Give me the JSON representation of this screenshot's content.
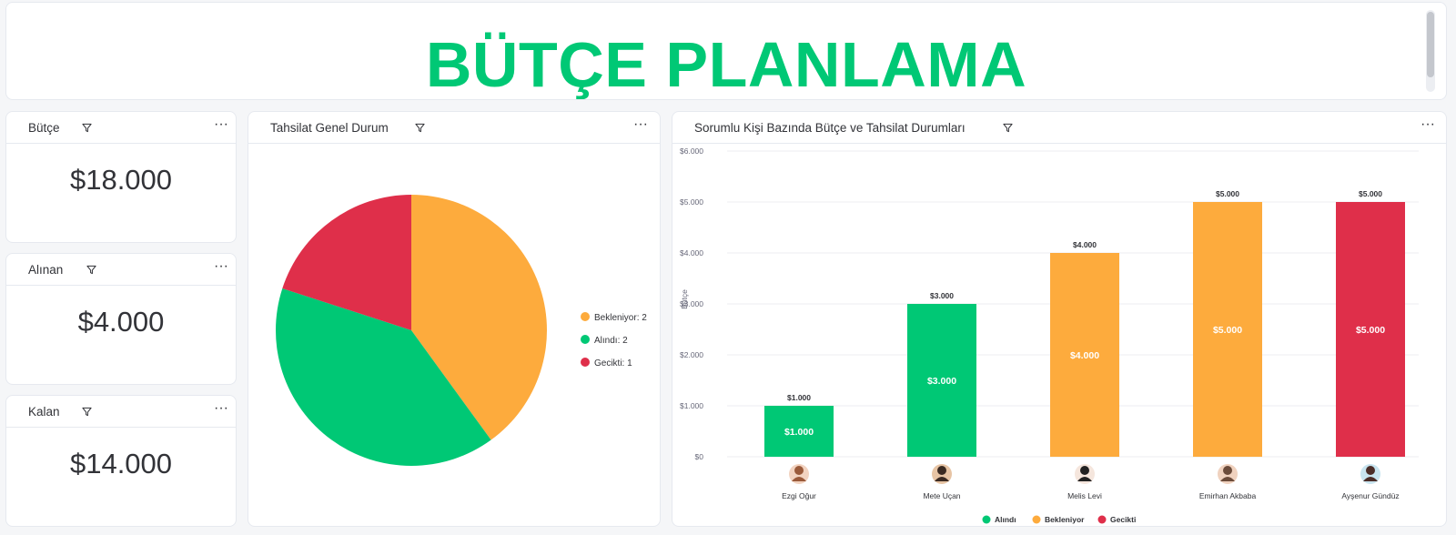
{
  "title": "BÜTÇE PLANLAMA",
  "colors": {
    "green": "#00c875",
    "orange": "#fdab3d",
    "red": "#df2f4a",
    "title": "#00c875"
  },
  "metrics": [
    {
      "label": "Bütçe",
      "value": "$18.000"
    },
    {
      "label": "Alınan",
      "value": "$4.000"
    },
    {
      "label": "Kalan",
      "value": "$14.000"
    }
  ],
  "pie_card": {
    "title": "Tahsilat Genel Durum",
    "legend": [
      "Bekleniyor: 2",
      "Alındı: 2",
      "Gecikti: 1"
    ]
  },
  "bar_card": {
    "title": "Sorumlu Kişi Bazında Bütçe ve Tahsilat Durumları",
    "legend": [
      "Alındı",
      "Bekleniyor",
      "Gecikti"
    ]
  },
  "chart_data": [
    {
      "type": "pie",
      "title": "Tahsilat Genel Durum",
      "categories": [
        "Bekleniyor",
        "Alındı",
        "Gecikti"
      ],
      "values": [
        2,
        2,
        1
      ],
      "colors": [
        "#fdab3d",
        "#00c875",
        "#df2f4a"
      ],
      "legend_position": "right"
    },
    {
      "type": "bar",
      "title": "Sorumlu Kişi Bazında Bütçe ve Tahsilat Durumları",
      "ylabel": "Bütçe",
      "ylim": [
        0,
        6000
      ],
      "yticks": [
        "$0",
        "$1.000",
        "$2.000",
        "$3.000",
        "$4.000",
        "$5.000",
        "$6.000"
      ],
      "categories": [
        "Ezgi Oğur",
        "Mete Uçan",
        "Melis Levi",
        "Emirhan Akbaba",
        "Ayşenur Gündüz"
      ],
      "values": [
        1000,
        3000,
        4000,
        5000,
        5000
      ],
      "value_labels": [
        "$1.000",
        "$3.000",
        "$4.000",
        "$5.000",
        "$5.000"
      ],
      "status": [
        "Alındı",
        "Alındı",
        "Bekleniyor",
        "Bekleniyor",
        "Gecikti"
      ],
      "colors": [
        "#00c875",
        "#00c875",
        "#fdab3d",
        "#fdab3d",
        "#df2f4a"
      ],
      "legend_position": "bottom"
    }
  ]
}
